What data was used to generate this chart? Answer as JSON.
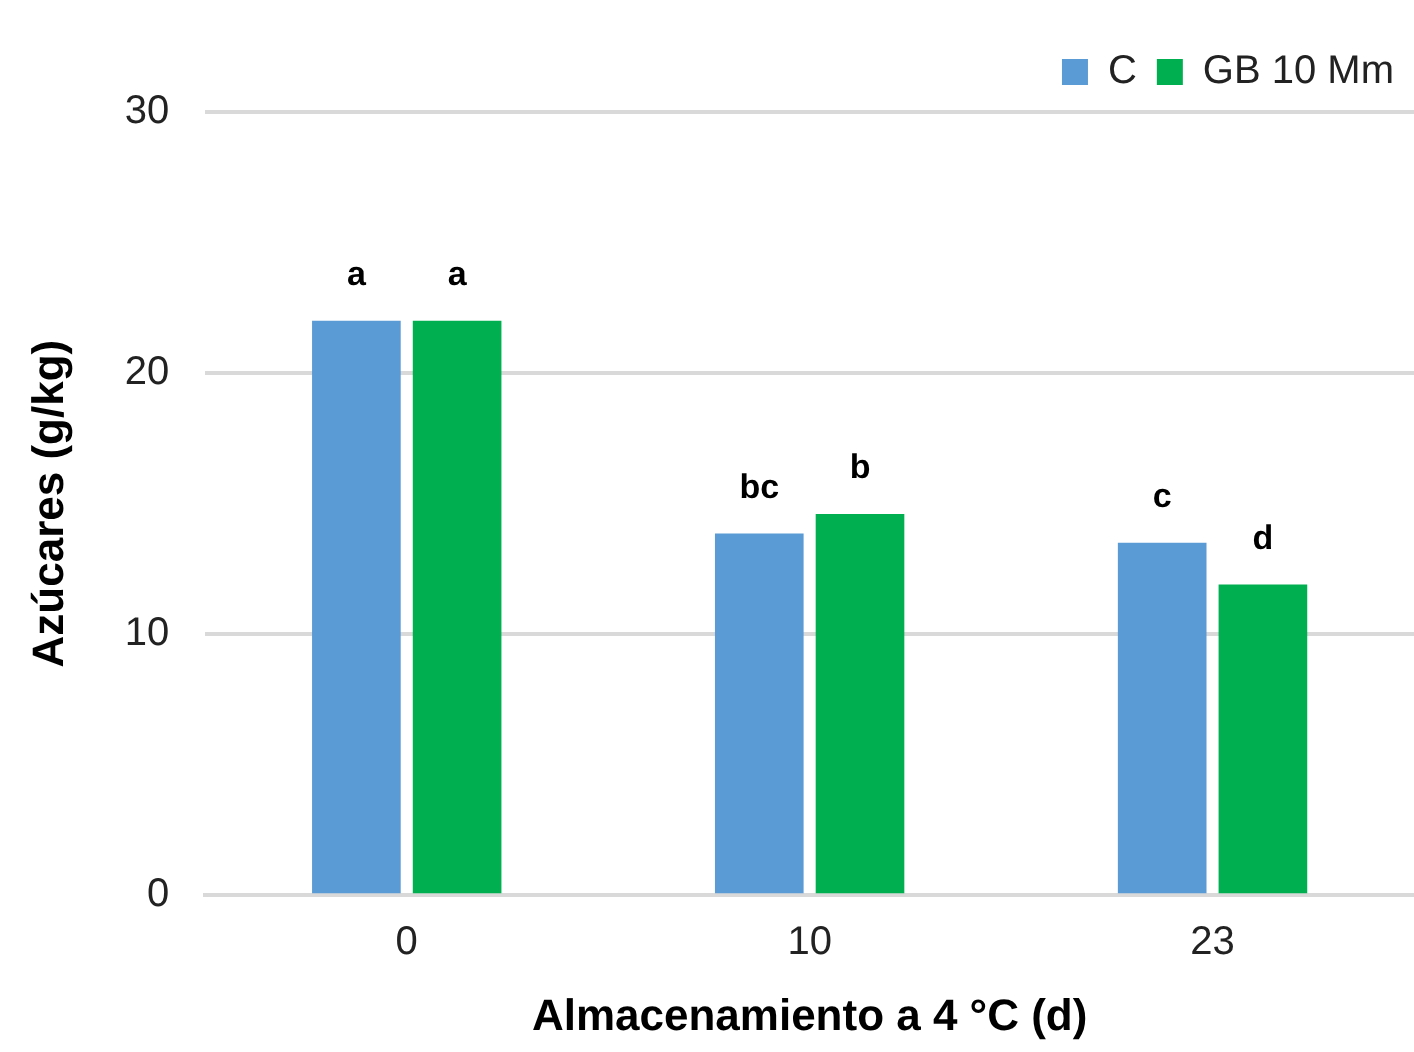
{
  "chart_data": {
    "type": "bar",
    "xlabel": "Almacenamiento a 4 °C (d)",
    "ylabel": "Azúcares (g/kg)",
    "categories": [
      "0",
      "10",
      "23"
    ],
    "series": [
      {
        "name": "C",
        "color": "#5b9bd5",
        "values": [
          22.0,
          13.85,
          13.5
        ],
        "value_labels": [
          "a",
          "bc",
          "c"
        ]
      },
      {
        "name": "GB 10 Mm",
        "color": "#00b050",
        "values": [
          22.0,
          14.6,
          11.9
        ],
        "value_labels": [
          "a",
          "b",
          "d"
        ]
      }
    ],
    "ylim": [
      0,
      30
    ],
    "yticks": [
      0,
      10,
      20,
      30
    ],
    "grid": "y",
    "legend": "top right"
  }
}
